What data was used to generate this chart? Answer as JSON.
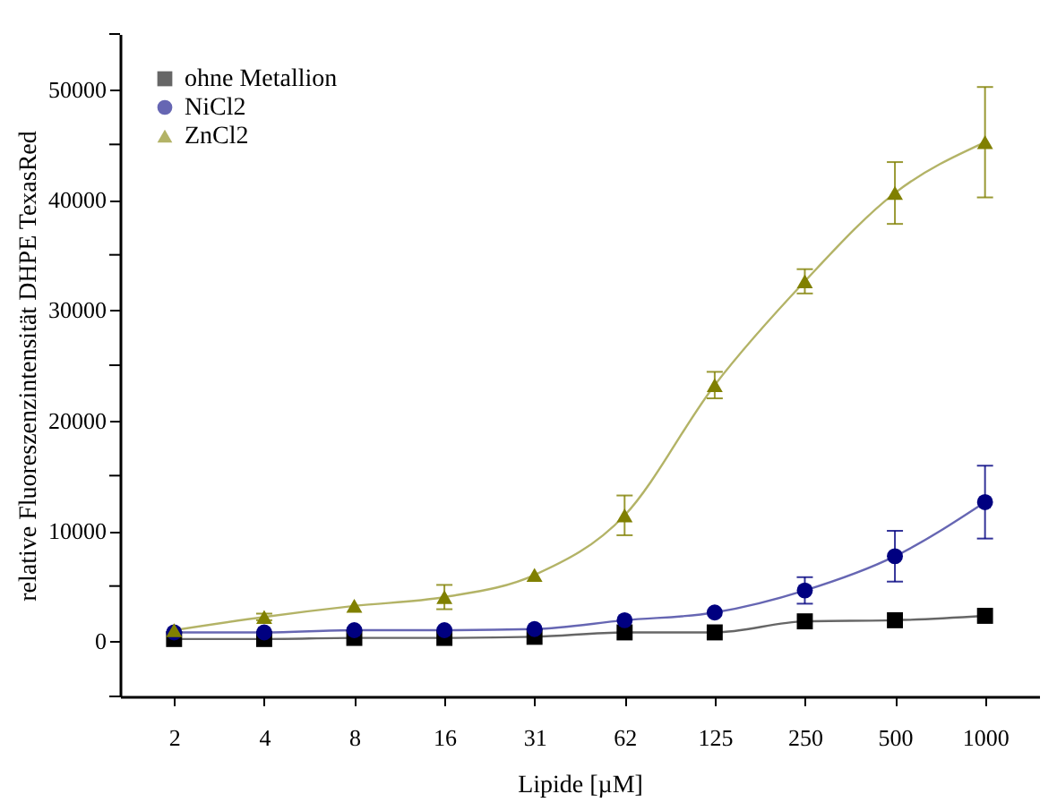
{
  "chart_data": {
    "type": "line",
    "xlabel": "Lipide [µM]",
    "ylabel": "relative Fluoreszenzintensität DHPE TexasRed",
    "categories": [
      "2",
      "4",
      "8",
      "16",
      "31",
      "62",
      "125",
      "250",
      "500",
      "1000"
    ],
    "series": [
      {
        "name": "ohne Metallion",
        "color": "#000000",
        "marker": "square",
        "values": [
          200,
          200,
          300,
          300,
          400,
          800,
          800,
          1800,
          1900,
          2300
        ]
      },
      {
        "name": "NiCl2",
        "color": "#000080",
        "marker": "circle",
        "values": [
          800,
          800,
          1000,
          1000,
          1100,
          1900,
          2600,
          4600,
          7700,
          12600
        ],
        "errors": [
          null,
          null,
          null,
          null,
          null,
          null,
          null,
          1200,
          2300,
          3300
        ]
      },
      {
        "name": "ZnCl2",
        "color": "#808000",
        "marker": "triangle",
        "values": [
          1000,
          2200,
          3200,
          4000,
          6000,
          11400,
          23200,
          32600,
          40600,
          45200
        ],
        "errors": [
          null,
          300,
          null,
          1100,
          null,
          1800,
          1200,
          1100,
          2800,
          5000
        ]
      }
    ],
    "ylim": [
      -5000,
      55000
    ],
    "yticks": [
      {
        "value": -5000,
        "label": null
      },
      0,
      {
        "value": 5000,
        "label": null
      },
      10000,
      {
        "value": 15000,
        "label": null
      },
      20000,
      {
        "value": 25000,
        "label": null
      },
      30000,
      {
        "value": 35000,
        "label": null
      },
      40000,
      {
        "value": 45000,
        "label": null
      },
      50000,
      {
        "value": 55000,
        "label": null
      }
    ],
    "grid": false,
    "legend": "top left"
  }
}
